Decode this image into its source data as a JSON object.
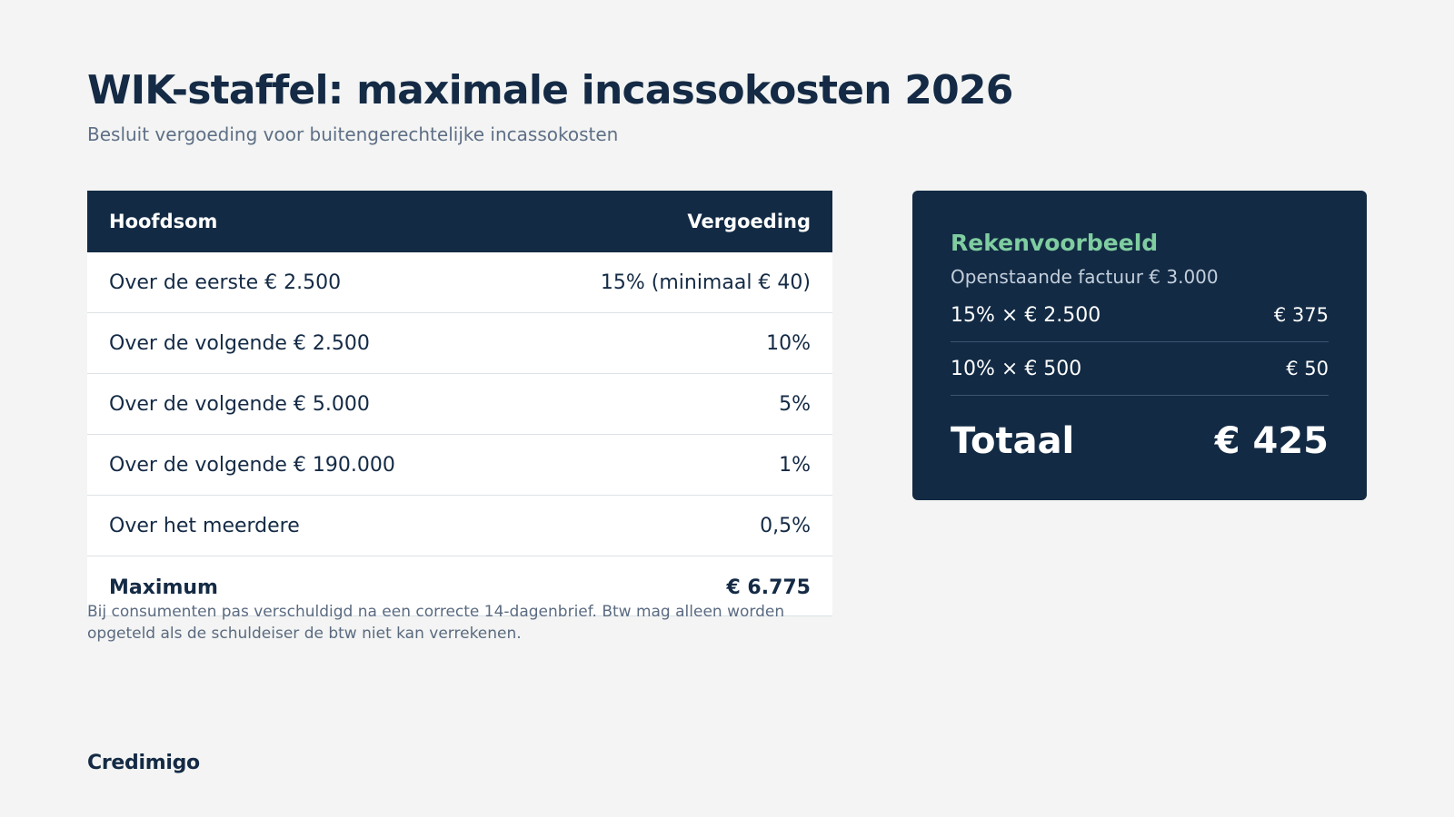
{
  "header": {
    "title": "WIK-staffel: maximale incassokosten 2026",
    "subtitle": "Besluit vergoeding voor buitengerechtelijke incassokosten"
  },
  "table": {
    "columns": [
      "Hoofdsom",
      "Vergoeding"
    ],
    "rows": [
      {
        "label": "Over de eerste € 2.500",
        "value": "15% (minimaal € 40)"
      },
      {
        "label": "Over de volgende € 2.500",
        "value": "10%"
      },
      {
        "label": "Over de volgende € 5.000",
        "value": "5%"
      },
      {
        "label": "Over de volgende € 190.000",
        "value": "1%"
      },
      {
        "label": "Over het meerdere",
        "value": "0,5%"
      }
    ],
    "maximum": {
      "label": "Maximum",
      "value": "€ 6.775"
    },
    "footnote": "Bij consumenten pas verschuldigd na een correcte 14-dagenbrief. Btw mag alleen worden opgeteld als de schuldeiser de btw niet kan verrekenen."
  },
  "example": {
    "title": "Rekenvoorbeeld",
    "subtitle": "Openstaande factuur € 3.000",
    "lines": [
      {
        "label": "15% × € 2.500",
        "value": "€ 375"
      },
      {
        "label": "10% × € 500",
        "value": "€ 50"
      }
    ],
    "total": {
      "label": "Totaal",
      "value": "€ 425"
    }
  },
  "brand": "Credimigo",
  "colors": {
    "background": "#f3f4f3",
    "navy": "#122a44",
    "green": "#7fcda0",
    "muted": "#5e6f86"
  }
}
